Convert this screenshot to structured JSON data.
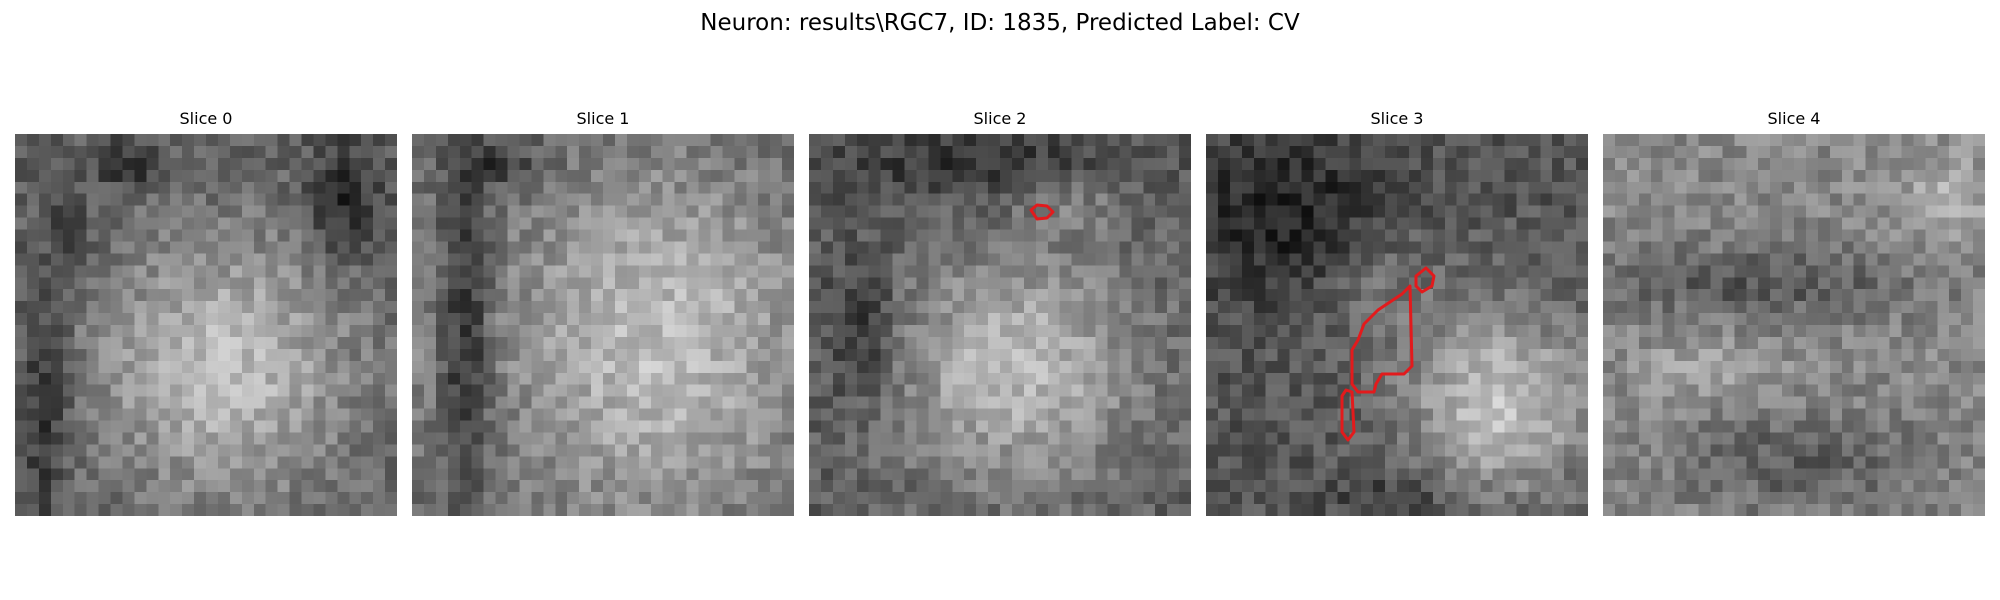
{
  "figure": {
    "title": "Neuron: results\\RGC7, ID: 1835, Predicted Label: CV"
  },
  "colors": {
    "contour": "#e31a1c",
    "background": "#ffffff"
  },
  "grid_size": 32,
  "slices": [
    {
      "label": "Slice 0"
    },
    {
      "label": "Slice 1"
    },
    {
      "label": "Slice 2"
    },
    {
      "label": "Slice 3"
    },
    {
      "label": "Slice 4"
    }
  ]
}
